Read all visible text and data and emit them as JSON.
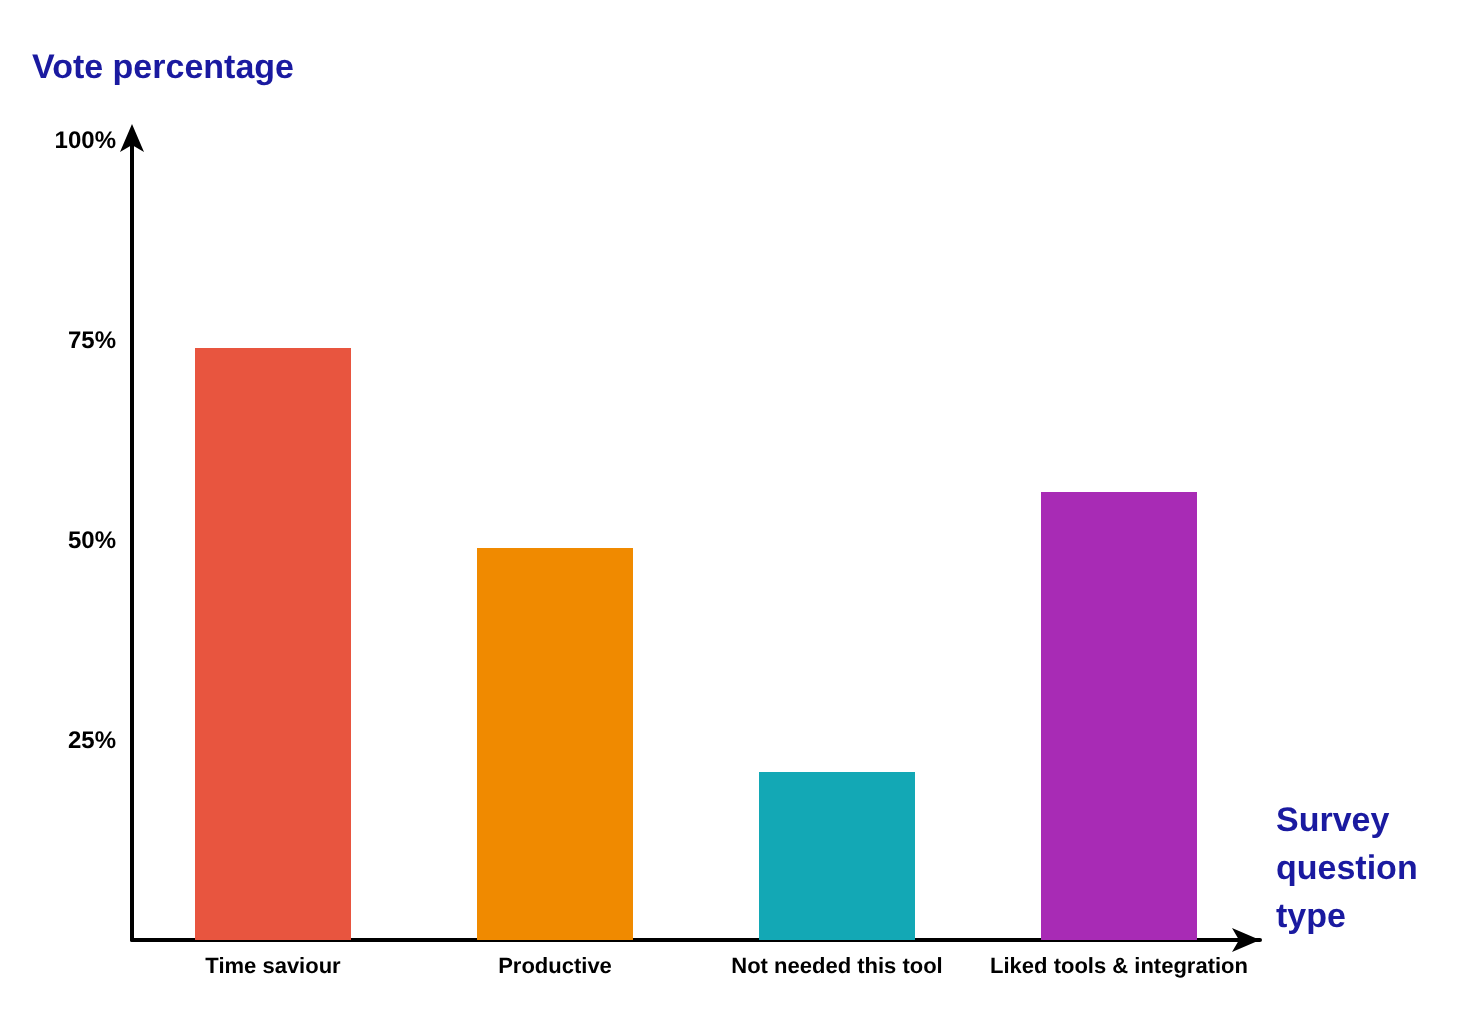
{
  "chart_data": {
    "type": "bar",
    "xlabel": "Survey question type",
    "ylabel": "Vote percentage",
    "categories": [
      "Time saviour",
      "Productive",
      "Not needed this tool",
      "Liked tools & integration"
    ],
    "values": [
      74,
      49,
      21,
      56
    ],
    "colors": [
      "#e8553f",
      "#f08a00",
      "#13a8b5",
      "#a82bb5"
    ],
    "ylim": [
      0,
      100
    ],
    "yticks": [
      {
        "value": 25,
        "label": "25%"
      },
      {
        "value": 50,
        "label": "50%"
      },
      {
        "value": 75,
        "label": "75%"
      },
      {
        "value": 100,
        "label": "100%"
      }
    ],
    "grid": false
  }
}
